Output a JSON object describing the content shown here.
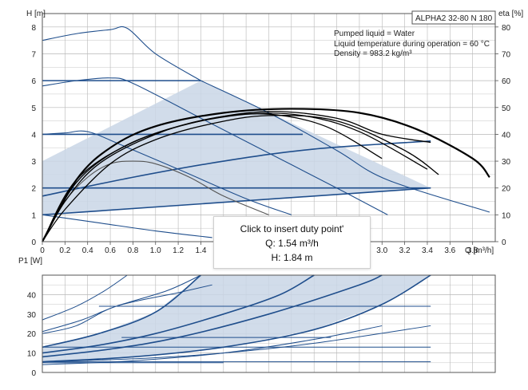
{
  "title": "ALPHA2 32-80 N 180",
  "info": [
    "Pumped liquid = Water",
    "Liquid temperature during operation = 60 °C",
    "Density = 983.2 kg/m³"
  ],
  "tooltip": {
    "line1": "Click to insert duty point'",
    "line2": "Q: 1.54 m³/h",
    "line3": "H: 1.84 m"
  },
  "colors": {
    "blue": "#1f4e8c",
    "fill": "#c9d6e6",
    "black": "#000000",
    "grid": "#b7b7b7"
  },
  "chart_data": [
    {
      "type": "line",
      "title": "ALPHA2 32-80 N 180",
      "xlabel": "Q [m³/h]",
      "ylabel": "H [m]",
      "y2label": "eta [%]",
      "xlim": [
        0,
        4.0
      ],
      "ylim": [
        0,
        8.5
      ],
      "y2lim": [
        0,
        85
      ],
      "x_ticks": [
        "0",
        "0.2",
        "0.4",
        "0.6",
        "0.8",
        "1.0",
        "1.2",
        "1.4",
        "1.6",
        "1.8",
        "2.0",
        "2.2",
        "2.4",
        "2.6",
        "2.8",
        "3.0",
        "3.2",
        "3.4",
        "3.6",
        "3.8"
      ],
      "y_ticks": [
        "0",
        "1",
        "2",
        "3",
        "4",
        "5",
        "6",
        "7",
        "8"
      ],
      "y2_ticks": [
        "0",
        "10",
        "20",
        "30",
        "40",
        "50",
        "60",
        "70",
        "80"
      ],
      "grid": true,
      "operating_area": [
        [
          0,
          1.0
        ],
        [
          0,
          3.0
        ],
        [
          1.4,
          6.0
        ],
        [
          3.43,
          2.0
        ],
        [
          0,
          1.0
        ]
      ],
      "series": [
        {
          "values": [
            [
              0,
              7.5
            ],
            [
              0.3,
              7.75
            ],
            [
              0.6,
              7.9
            ],
            [
              0.75,
              7.95
            ],
            [
              1.0,
              7.0
            ],
            [
              1.4,
              6.0
            ]
          ]
        },
        {
          "values": [
            [
              0,
              5.8
            ],
            [
              0.3,
              6.0
            ],
            [
              0.6,
              6.1
            ],
            [
              0.8,
              5.9
            ],
            [
              1.4,
              4.6
            ],
            [
              2.0,
              3.3
            ],
            [
              2.6,
              2.0
            ],
            [
              3.05,
              1.0
            ]
          ]
        },
        {
          "values": [
            [
              0,
              4.0
            ],
            [
              0.2,
              4.05
            ],
            [
              0.4,
              4.1
            ],
            [
              0.7,
              3.6
            ],
            [
              1.2,
              2.7
            ],
            [
              1.8,
              1.6
            ],
            [
              2.2,
              1.0
            ]
          ]
        },
        {
          "values": [
            [
              0,
              1.0
            ],
            [
              0.5,
              0.7
            ],
            [
              1.0,
              0.4
            ],
            [
              1.5,
              0.15
            ]
          ]
        },
        {
          "values": [
            [
              0,
              6.0
            ],
            [
              1.4,
              6.0
            ]
          ]
        },
        {
          "values": [
            [
              0,
              4.0
            ],
            [
              2.3,
              4.0
            ]
          ]
        },
        {
          "values": [
            [
              0,
              2.0
            ],
            [
              3.43,
              2.0
            ]
          ]
        },
        {
          "values": [
            [
              0,
              1.0
            ],
            [
              3.43,
              2.0
            ]
          ]
        },
        {
          "values": [
            [
              0,
              1.7
            ],
            [
              0.8,
              2.4
            ],
            [
              1.6,
              3.0
            ],
            [
              2.4,
              3.45
            ],
            [
              3.43,
              3.75
            ]
          ]
        },
        {
          "values": [
            [
              0,
              0
            ],
            [
              0.2,
              1.5
            ],
            [
              0.4,
              2.4
            ],
            [
              0.6,
              2.9
            ],
            [
              0.8,
              3.0
            ],
            [
              1.0,
              2.9
            ],
            [
              1.3,
              2.4
            ],
            [
              1.6,
              1.7
            ],
            [
              2.0,
              1.0
            ]
          ]
        },
        {
          "values": [
            [
              1.4,
              6.0
            ],
            [
              2.0,
              4.8
            ],
            [
              2.6,
              3.4
            ],
            [
              3.05,
              2.3
            ],
            [
              3.95,
              1.1
            ]
          ]
        },
        {
          "values": [
            [
              0,
              0
            ],
            [
              0.2,
              1.5
            ],
            [
              0.5,
              2.9
            ],
            [
              1.0,
              4.0
            ],
            [
              1.5,
              4.6
            ],
            [
              2.0,
              4.75
            ],
            [
              2.5,
              4.3
            ],
            [
              3.0,
              3.1
            ]
          ]
        },
        {
          "values": [
            [
              0,
              0
            ],
            [
              0.3,
              2.2
            ],
            [
              0.7,
              3.5
            ],
            [
              1.2,
              4.3
            ],
            [
              1.8,
              4.75
            ],
            [
              2.3,
              4.7
            ],
            [
              2.8,
              4.1
            ],
            [
              3.4,
              2.7
            ]
          ]
        },
        {
          "values": [
            [
              0,
              0
            ],
            [
              0.3,
              2.3
            ],
            [
              0.8,
              3.7
            ],
            [
              1.4,
              4.5
            ],
            [
              2.0,
              4.85
            ],
            [
              2.6,
              4.6
            ],
            [
              3.0,
              4.0
            ],
            [
              3.43,
              3.7
            ]
          ]
        },
        {
          "values": [
            [
              0,
              0
            ],
            [
              0.2,
              1.2
            ],
            [
              0.6,
              2.9
            ],
            [
              1.0,
              3.8
            ],
            [
              1.5,
              4.4
            ],
            [
              2.0,
              4.7
            ],
            [
              2.6,
              4.5
            ],
            [
              3.2,
              3.4
            ],
            [
              3.5,
              2.5
            ]
          ]
        },
        {
          "values": [
            [
              0,
              0
            ],
            [
              0.3,
              2.3
            ],
            [
              0.6,
              3.5
            ],
            [
              1.0,
              4.3
            ],
            [
              1.6,
              4.8
            ],
            [
              2.2,
              4.95
            ],
            [
              2.8,
              4.8
            ],
            [
              3.3,
              4.2
            ],
            [
              3.8,
              3.1
            ],
            [
              3.95,
              2.4
            ]
          ]
        }
      ]
    },
    {
      "type": "line",
      "xlabel": "",
      "ylabel": "P1 [W]",
      "xlim": [
        0,
        4.0
      ],
      "ylim": [
        0,
        50
      ],
      "y_ticks": [
        "0",
        "10",
        "20",
        "30",
        "40"
      ],
      "grid": true,
      "operating_area": [
        [
          0,
          5.5
        ],
        [
          0,
          13
        ],
        [
          1.4,
          50
        ],
        [
          3.43,
          50
        ],
        [
          0,
          5.5
        ]
      ],
      "series": [
        {
          "values": [
            [
              0,
              27
            ],
            [
              0.3,
              34
            ],
            [
              0.55,
              42
            ],
            [
              0.75,
              50
            ]
          ]
        },
        {
          "values": [
            [
              0,
              21
            ],
            [
              0.35,
              27
            ],
            [
              0.65,
              34
            ],
            [
              1.1,
              42
            ],
            [
              1.4,
              50
            ]
          ]
        },
        {
          "values": [
            [
              0,
              20
            ],
            [
              0.3,
              24
            ],
            [
              0.65,
              34
            ],
            [
              1.2,
              41
            ],
            [
              1.5,
              45
            ]
          ]
        },
        {
          "values": [
            [
              0,
              13
            ],
            [
              0.5,
              20
            ],
            [
              1.0,
              31
            ],
            [
              1.4,
              50
            ]
          ]
        },
        {
          "values": [
            [
              0,
              10
            ],
            [
              0.5,
              14
            ],
            [
              1.0,
              20
            ],
            [
              1.6,
              30
            ],
            [
              2.1,
              40
            ],
            [
              2.4,
              50
            ]
          ]
        },
        {
          "values": [
            [
              0,
              8
            ],
            [
              0.6,
              12
            ],
            [
              1.2,
              18
            ],
            [
              2.0,
              30
            ],
            [
              2.8,
              45
            ],
            [
              3.0,
              50
            ]
          ]
        },
        {
          "values": [
            [
              0,
              5.5
            ],
            [
              0.8,
              8
            ],
            [
              1.6,
              13
            ],
            [
              2.4,
              22
            ],
            [
              3.0,
              35
            ],
            [
              3.43,
              50
            ]
          ]
        },
        {
          "values": [
            [
              0,
              5.5
            ],
            [
              0.8,
              7
            ],
            [
              1.6,
              10
            ],
            [
              2.4,
              15
            ],
            [
              3.43,
              24
            ]
          ]
        },
        {
          "values": [
            [
              0,
              4
            ],
            [
              0.8,
              6
            ],
            [
              1.6,
              10
            ],
            [
              2.4,
              17
            ],
            [
              3.0,
              24
            ]
          ]
        },
        {
          "values": [
            [
              0,
              5.5
            ],
            [
              3.43,
              5.5
            ]
          ]
        },
        {
          "values": [
            [
              0,
              13
            ],
            [
              3.43,
              13
            ]
          ]
        },
        {
          "values": [
            [
              0.5,
              34
            ],
            [
              3.43,
              34
            ]
          ]
        },
        {
          "values": [
            [
              0.7,
              18
            ],
            [
              2.55,
              18
            ]
          ]
        },
        {
          "values": [
            [
              0,
              5
            ],
            [
              1.6,
              5
            ]
          ]
        },
        {
          "values": [
            [
              1.4,
              50
            ],
            [
              3.95,
              50
            ]
          ]
        },
        {
          "values": [
            [
              0.75,
              50
            ],
            [
              1.4,
              50
            ]
          ]
        }
      ]
    }
  ]
}
